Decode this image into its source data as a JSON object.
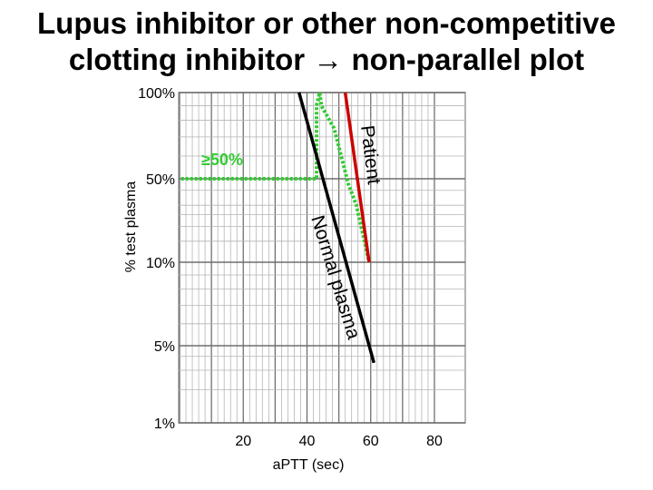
{
  "title_line1": "Lupus inhibitor or other non-competitive",
  "title_line2": "clotting inhibitor → non-parallel plot",
  "chart_data": {
    "type": "line",
    "title": "Lupus inhibitor or other non-competitive clotting inhibitor → non-parallel plot",
    "xlabel": "a​PTT (sec)",
    "ylabel": "% test plasma",
    "x_ticks": [
      20,
      40,
      60,
      80
    ],
    "x_tick_labels": [
      "20",
      "40",
      "60",
      "80"
    ],
    "y_ticks": [
      {
        "value": 100,
        "label": "100%"
      },
      {
        "value": 50,
        "label": "50%"
      },
      {
        "value": 10,
        "label": "10%"
      },
      {
        "value": 5,
        "label": "5%"
      },
      {
        "value": 1,
        "label": "1%"
      }
    ],
    "grid": true,
    "series": [
      {
        "name": "Normal plasma",
        "color": "#000000",
        "points": [
          [
            37.5,
            100
          ],
          [
            61,
            3.5
          ]
        ]
      },
      {
        "name": "Patient",
        "color": "#cc0000",
        "points": [
          [
            52,
            100
          ],
          [
            59.5,
            10
          ]
        ]
      }
    ],
    "annotations": [
      {
        "text": "≥50%",
        "color": "#33cc33",
        "path": [
          [
            0.5,
            50
          ],
          [
            43,
            50
          ],
          [
            43,
            90
          ],
          [
            44,
            100
          ],
          [
            44.5,
            90
          ],
          [
            48.5,
            75
          ],
          [
            53,
            45
          ],
          [
            55.5,
            30
          ],
          [
            59.5,
            10
          ]
        ]
      }
    ],
    "curve_labels": {
      "normal": "Normal plasma",
      "patient": "Patient"
    }
  },
  "colors": {
    "grid": "#9a9a9a",
    "normal": "#000000",
    "patient": "#cc0000",
    "annotation": "#33cc33"
  }
}
